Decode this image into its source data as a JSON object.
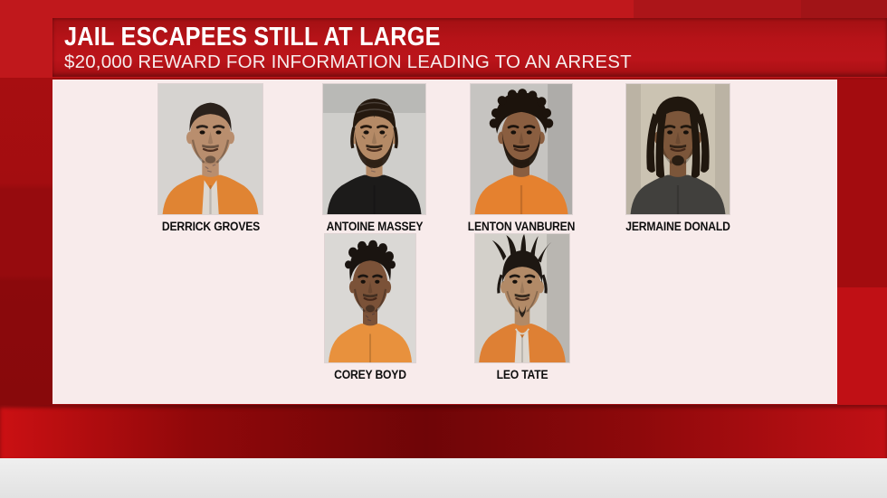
{
  "header": {
    "title": "JAIL ESCAPEES STILL AT LARGE",
    "subtitle": "$20,000 REWARD FOR INFORMATION LEADING TO AN ARREST"
  },
  "colors": {
    "backdrop_red": "#c0181c",
    "header_band_red": "#b61318",
    "panel_bg": "#f8ebeb",
    "name_text": "#0e0e0e",
    "bottom_strip_gray": "#e7e7e7",
    "title_text": "#ffffff"
  },
  "people": [
    {
      "name": "DERRICK GROVES",
      "photo": {
        "bg": "#d6d3d0",
        "bg_shadow": "none",
        "skin": "#b98e6e",
        "hair": "#2b211b",
        "shirt": "#e08433",
        "hair_style": "short",
        "facial_hair": "light",
        "tee": true,
        "chain": false,
        "face_tattoos": false,
        "neck_tattoos": true
      }
    },
    {
      "name": "ANTOINE MASSEY",
      "photo": {
        "bg": "#cfcecb",
        "bg_shadow": "top",
        "skin": "#b58a66",
        "hair": "#25190f",
        "shirt": "#1c1b1a",
        "hair_style": "braids",
        "facial_hair": "full",
        "tee": false,
        "chain": false,
        "face_tattoos": true,
        "neck_tattoos": true
      }
    },
    {
      "name": "LENTON VANBUREN",
      "photo": {
        "bg": "#c6c4c1",
        "bg_shadow": "right",
        "skin": "#8a5e40",
        "hair": "#1c130c",
        "shirt": "#e5812f",
        "hair_style": "twists",
        "facial_hair": "full",
        "tee": false,
        "chain": false,
        "face_tattoos": false,
        "neck_tattoos": false
      }
    },
    {
      "name": "JERMAINE DONALD",
      "photo": {
        "bg": "#cbc3b2",
        "bg_shadow": "sides",
        "skin": "#7c563a",
        "hair": "#20170e",
        "shirt": "#41403d",
        "hair_style": "dreads",
        "facial_hair": "goatee",
        "tee": false,
        "chain": false,
        "face_tattoos": false,
        "neck_tattoos": false
      }
    },
    {
      "name": "COREY BOYD",
      "photo": {
        "bg": "#dad8d5",
        "bg_shadow": "none",
        "skin": "#7b5238",
        "hair": "#1a1410",
        "shirt": "#e8913d",
        "hair_style": "afro",
        "facial_hair": "light",
        "tee": false,
        "chain": false,
        "face_tattoos": false,
        "neck_tattoos": true
      }
    },
    {
      "name": "LEO TATE",
      "photo": {
        "bg": "#d3d0ca",
        "bg_shadow": "right",
        "skin": "#b28a67",
        "hair": "#1d1712",
        "shirt": "#de8034",
        "hair_style": "spiky",
        "facial_hair": "mustache_chin",
        "tee": true,
        "chain": true,
        "face_tattoos": false,
        "neck_tattoos": false
      }
    }
  ]
}
